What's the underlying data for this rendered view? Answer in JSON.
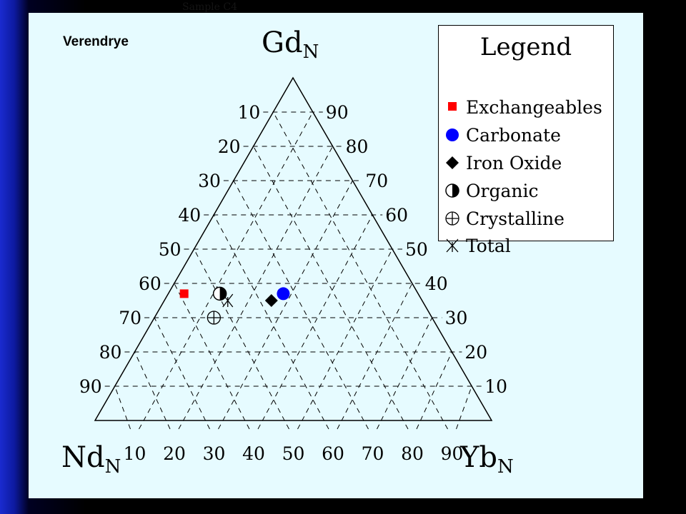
{
  "slide": {
    "title": "Sample C4"
  },
  "chart_data": {
    "type": "scatter",
    "subtype": "ternary",
    "site_label": "Verendrye",
    "vertices": {
      "top": {
        "text": "Gd",
        "sub": "N"
      },
      "left": {
        "text": "Nd",
        "sub": "N"
      },
      "right": {
        "text": "Yb",
        "sub": "N"
      }
    },
    "left_ticks": [
      "10",
      "20",
      "30",
      "40",
      "50",
      "60",
      "70",
      "80",
      "90"
    ],
    "right_ticks": [
      "90",
      "80",
      "70",
      "60",
      "50",
      "40",
      "30",
      "20",
      "10"
    ],
    "bottom_ticks": [
      "10",
      "20",
      "30",
      "40",
      "50",
      "60",
      "70",
      "80",
      "90"
    ],
    "grid": true,
    "legend_placement": "top-right",
    "legend": {
      "title": "Legend",
      "items": [
        {
          "label": "Exchangeables",
          "marker": "red-square-icon",
          "color": "#ff0000"
        },
        {
          "label": "Carbonate",
          "marker": "blue-circle-icon",
          "color": "#0000ff"
        },
        {
          "label": "Iron Oxide",
          "marker": "black-diamond-icon",
          "color": "#000000"
        },
        {
          "label": "Organic",
          "marker": "half-filled-circle-icon",
          "color": "#000000"
        },
        {
          "label": "Crystalline",
          "marker": "crossed-circle-icon",
          "color": "#000000"
        },
        {
          "label": "Total",
          "marker": "asterisk-icon",
          "color": "#000000"
        }
      ]
    },
    "points": [
      {
        "series": "Exchangeables",
        "nd": 59,
        "gd": 37,
        "yb": 4
      },
      {
        "series": "Carbonate",
        "nd": 34,
        "gd": 37,
        "yb": 29
      },
      {
        "series": "Iron Oxide",
        "nd": 38,
        "gd": 35,
        "yb": 27
      },
      {
        "series": "Organic",
        "nd": 50,
        "gd": 37,
        "yb": 13
      },
      {
        "series": "Crystalline",
        "nd": 55,
        "gd": 30,
        "yb": 15
      },
      {
        "series": "Total",
        "nd": 49,
        "gd": 35,
        "yb": 16
      }
    ]
  }
}
